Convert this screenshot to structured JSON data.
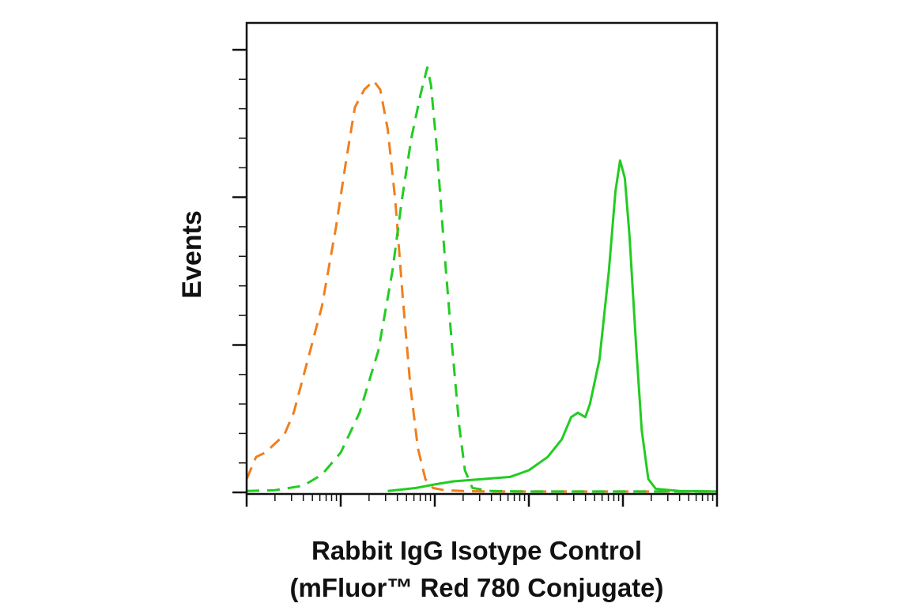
{
  "chart_data": {
    "type": "line",
    "title": "",
    "xlabel": [
      "Rabbit IgG Isotype Control",
      "(mFluor™ Red 780 Conjugate)"
    ],
    "ylabel": "Events",
    "x_scale": "log",
    "x_decades": [
      0,
      5
    ],
    "ylim": [
      0,
      100
    ],
    "y_major_ticks": [
      0,
      33.3,
      66.7,
      100
    ],
    "grid": false,
    "legend": "none",
    "series": [
      {
        "color": "#f07f1e",
        "style": "dashed",
        "points": [
          [
            0.0,
            3
          ],
          [
            0.1,
            8
          ],
          [
            0.2,
            9
          ],
          [
            0.3,
            11
          ],
          [
            0.4,
            13
          ],
          [
            0.5,
            18
          ],
          [
            0.65,
            30
          ],
          [
            0.8,
            42
          ],
          [
            0.95,
            60
          ],
          [
            1.05,
            74
          ],
          [
            1.15,
            87
          ],
          [
            1.25,
            91
          ],
          [
            1.35,
            93
          ],
          [
            1.42,
            91
          ],
          [
            1.5,
            82
          ],
          [
            1.58,
            66
          ],
          [
            1.66,
            44
          ],
          [
            1.74,
            24
          ],
          [
            1.82,
            10
          ],
          [
            1.9,
            3
          ],
          [
            1.98,
            1
          ],
          [
            2.1,
            0.5
          ],
          [
            2.3,
            0.3
          ],
          [
            2.6,
            0.2
          ],
          [
            3.0,
            0.2
          ],
          [
            3.5,
            0.2
          ],
          [
            4.0,
            0.2
          ],
          [
            4.5,
            0.2
          ],
          [
            5.0,
            0.2
          ]
        ]
      },
      {
        "color": "#22cc22",
        "style": "dashed",
        "points": [
          [
            0.0,
            0.3
          ],
          [
            0.3,
            0.5
          ],
          [
            0.6,
            1.5
          ],
          [
            0.8,
            4
          ],
          [
            1.0,
            9
          ],
          [
            1.2,
            18
          ],
          [
            1.4,
            32
          ],
          [
            1.55,
            50
          ],
          [
            1.65,
            66
          ],
          [
            1.75,
            80
          ],
          [
            1.85,
            90
          ],
          [
            1.92,
            96
          ],
          [
            1.96,
            92
          ],
          [
            2.02,
            78
          ],
          [
            2.1,
            55
          ],
          [
            2.18,
            34
          ],
          [
            2.26,
            15
          ],
          [
            2.32,
            5
          ],
          [
            2.4,
            1
          ],
          [
            2.6,
            0.3
          ],
          [
            3.0,
            0.2
          ],
          [
            4.0,
            0.2
          ],
          [
            5.0,
            0.2
          ]
        ]
      },
      {
        "color": "#22cc22",
        "style": "solid",
        "points": [
          [
            1.5,
            0.3
          ],
          [
            1.8,
            1
          ],
          [
            2.0,
            1.8
          ],
          [
            2.2,
            2.5
          ],
          [
            2.5,
            3
          ],
          [
            2.8,
            3.5
          ],
          [
            3.0,
            5
          ],
          [
            3.2,
            8
          ],
          [
            3.35,
            12
          ],
          [
            3.45,
            17
          ],
          [
            3.52,
            18
          ],
          [
            3.6,
            17
          ],
          [
            3.65,
            20
          ],
          [
            3.75,
            30
          ],
          [
            3.85,
            50
          ],
          [
            3.92,
            68
          ],
          [
            3.97,
            75
          ],
          [
            4.02,
            71
          ],
          [
            4.07,
            58
          ],
          [
            4.14,
            33
          ],
          [
            4.2,
            14
          ],
          [
            4.27,
            3
          ],
          [
            4.35,
            0.8
          ],
          [
            4.6,
            0.3
          ],
          [
            5.0,
            0.2
          ]
        ]
      }
    ]
  }
}
